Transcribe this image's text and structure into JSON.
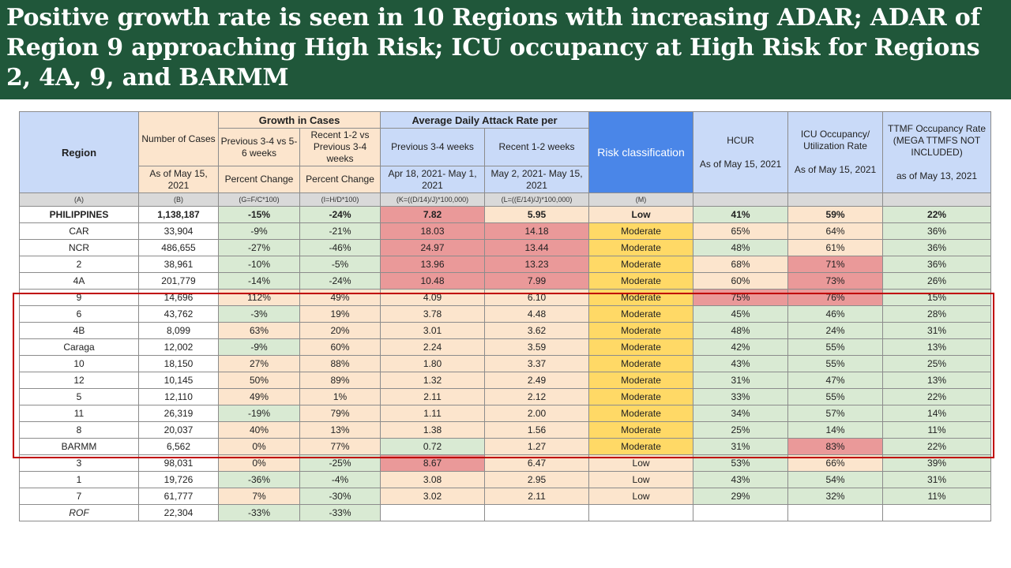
{
  "title": "Positive growth rate is seen in 10 Regions with increasing ADAR; ADAR of Region 9 approaching High Risk; ICU occupancy at High Risk for Regions 2, 4A, 9, and BARMM",
  "colors": {
    "banner": "#20573a",
    "low": "#d9ead3",
    "moderate_band": "#fce5cd",
    "high": "#ea9999",
    "risk_moderate": "#ffd966",
    "highlight_box": "#c00000"
  },
  "header": {
    "region": "Region",
    "cases_top": "Number of Cases",
    "cases_bottom": "As of May 15, 2021",
    "growth": "Growth in Cases",
    "growth_prev": "Previous 3-4 vs 5-6 weeks",
    "growth_recent": "Recent 1-2 vs Previous 3-4 weeks",
    "percent_change_prev": "Percent Change",
    "percent_change_recent": "Percent Change",
    "adar": "Average Daily Attack Rate per",
    "adar_prev": "Previous 3-4 weeks",
    "adar_recent": "Recent 1-2 weeks",
    "adar_prev_dates": "Apr 18, 2021- May 1, 2021",
    "adar_recent_dates": "May 2, 2021- May 15, 2021",
    "risk": "Risk classification",
    "hcur": "HCUR",
    "hcur_date": "As of May 15, 2021",
    "icu": "ICU Occupancy/ Utilization Rate",
    "icu_date": "As of May 15, 2021",
    "ttmf": "TTMF Occupancy Rate (MEGA TTMFS NOT INCLUDED)",
    "ttmf_date": "as of May 13, 2021"
  },
  "formula_row": [
    "(A)",
    "(B)",
    "(G=F/C*100)",
    "(I=H/D*100)",
    "(K=((D/14)/J)*100,000)",
    "(L=((E/14)/J)*100,000)",
    "(M)",
    "",
    "",
    ""
  ],
  "rows": [
    {
      "cells": [
        "PHILIPPINES",
        "1,138,187",
        "-15%",
        "-24%",
        "7.82",
        "5.95",
        "Low",
        "41%",
        "59%",
        "22%"
      ],
      "colors": [
        "w",
        "w",
        "g",
        "g",
        "r",
        "y",
        "y",
        "g",
        "y",
        "g"
      ]
    },
    {
      "cells": [
        "CAR",
        "33,904",
        "-9%",
        "-21%",
        "18.03",
        "14.18",
        "Moderate",
        "65%",
        "64%",
        "36%"
      ],
      "colors": [
        "w",
        "w",
        "g",
        "g",
        "r",
        "r",
        "o",
        "y",
        "y",
        "g"
      ]
    },
    {
      "cells": [
        "NCR",
        "486,655",
        "-27%",
        "-46%",
        "24.97",
        "13.44",
        "Moderate",
        "48%",
        "61%",
        "36%"
      ],
      "colors": [
        "w",
        "w",
        "g",
        "g",
        "r",
        "r",
        "o",
        "g",
        "y",
        "g"
      ]
    },
    {
      "cells": [
        "2",
        "38,961",
        "-10%",
        "-5%",
        "13.96",
        "13.23",
        "Moderate",
        "68%",
        "71%",
        "36%"
      ],
      "colors": [
        "w",
        "w",
        "g",
        "g",
        "r",
        "r",
        "o",
        "y",
        "r",
        "g"
      ]
    },
    {
      "cells": [
        "4A",
        "201,779",
        "-14%",
        "-24%",
        "10.48",
        "7.99",
        "Moderate",
        "60%",
        "73%",
        "26%"
      ],
      "colors": [
        "w",
        "w",
        "g",
        "g",
        "r",
        "r",
        "o",
        "y",
        "r",
        "g"
      ]
    },
    {
      "cells": [
        "9",
        "14,696",
        "112%",
        "49%",
        "4.09",
        "6.10",
        "Moderate",
        "75%",
        "76%",
        "15%"
      ],
      "colors": [
        "w",
        "w",
        "y",
        "y",
        "y",
        "y",
        "o",
        "r",
        "r",
        "g"
      ]
    },
    {
      "cells": [
        "6",
        "43,762",
        "-3%",
        "19%",
        "3.78",
        "4.48",
        "Moderate",
        "45%",
        "46%",
        "28%"
      ],
      "colors": [
        "w",
        "w",
        "g",
        "y",
        "y",
        "y",
        "o",
        "g",
        "g",
        "g"
      ]
    },
    {
      "cells": [
        "4B",
        "8,099",
        "63%",
        "20%",
        "3.01",
        "3.62",
        "Moderate",
        "48%",
        "24%",
        "31%"
      ],
      "colors": [
        "w",
        "w",
        "y",
        "y",
        "y",
        "y",
        "o",
        "g",
        "g",
        "g"
      ]
    },
    {
      "cells": [
        "Caraga",
        "12,002",
        "-9%",
        "60%",
        "2.24",
        "3.59",
        "Moderate",
        "42%",
        "55%",
        "13%"
      ],
      "colors": [
        "w",
        "w",
        "g",
        "y",
        "y",
        "y",
        "o",
        "g",
        "g",
        "g"
      ]
    },
    {
      "cells": [
        "10",
        "18,150",
        "27%",
        "88%",
        "1.80",
        "3.37",
        "Moderate",
        "43%",
        "55%",
        "25%"
      ],
      "colors": [
        "w",
        "w",
        "y",
        "y",
        "y",
        "y",
        "o",
        "g",
        "g",
        "g"
      ]
    },
    {
      "cells": [
        "12",
        "10,145",
        "50%",
        "89%",
        "1.32",
        "2.49",
        "Moderate",
        "31%",
        "47%",
        "13%"
      ],
      "colors": [
        "w",
        "w",
        "y",
        "y",
        "y",
        "y",
        "o",
        "g",
        "g",
        "g"
      ]
    },
    {
      "cells": [
        "5",
        "12,110",
        "49%",
        "1%",
        "2.11",
        "2.12",
        "Moderate",
        "33%",
        "55%",
        "22%"
      ],
      "colors": [
        "w",
        "w",
        "y",
        "y",
        "y",
        "y",
        "o",
        "g",
        "g",
        "g"
      ]
    },
    {
      "cells": [
        "11",
        "26,319",
        "-19%",
        "79%",
        "1.11",
        "2.00",
        "Moderate",
        "34%",
        "57%",
        "14%"
      ],
      "colors": [
        "w",
        "w",
        "g",
        "y",
        "y",
        "y",
        "o",
        "g",
        "g",
        "g"
      ]
    },
    {
      "cells": [
        "8",
        "20,037",
        "40%",
        "13%",
        "1.38",
        "1.56",
        "Moderate",
        "25%",
        "14%",
        "11%"
      ],
      "colors": [
        "w",
        "w",
        "y",
        "y",
        "y",
        "y",
        "o",
        "g",
        "g",
        "g"
      ]
    },
    {
      "cells": [
        "BARMM",
        "6,562",
        "0%",
        "77%",
        "0.72",
        "1.27",
        "Moderate",
        "31%",
        "83%",
        "22%"
      ],
      "colors": [
        "w",
        "w",
        "y",
        "y",
        "g",
        "y",
        "o",
        "g",
        "r",
        "g"
      ]
    },
    {
      "cells": [
        "3",
        "98,031",
        "0%",
        "-25%",
        "8.67",
        "6.47",
        "Low",
        "53%",
        "66%",
        "39%"
      ],
      "colors": [
        "w",
        "w",
        "y",
        "g",
        "r",
        "y",
        "y",
        "g",
        "y",
        "g"
      ]
    },
    {
      "cells": [
        "1",
        "19,726",
        "-36%",
        "-4%",
        "3.08",
        "2.95",
        "Low",
        "43%",
        "54%",
        "31%"
      ],
      "colors": [
        "w",
        "w",
        "g",
        "g",
        "y",
        "y",
        "y",
        "g",
        "g",
        "g"
      ]
    },
    {
      "cells": [
        "7",
        "61,777",
        "7%",
        "-30%",
        "3.02",
        "2.11",
        "Low",
        "29%",
        "32%",
        "11%"
      ],
      "colors": [
        "w",
        "w",
        "y",
        "g",
        "y",
        "y",
        "y",
        "g",
        "g",
        "g"
      ]
    },
    {
      "cells": [
        "ROF",
        "22,304",
        "-33%",
        "-33%",
        "",
        "",
        "",
        "",
        "",
        ""
      ],
      "colors": [
        "w",
        "w",
        "g",
        "g",
        "w",
        "w",
        "w",
        "w",
        "w",
        "w"
      ]
    }
  ]
}
